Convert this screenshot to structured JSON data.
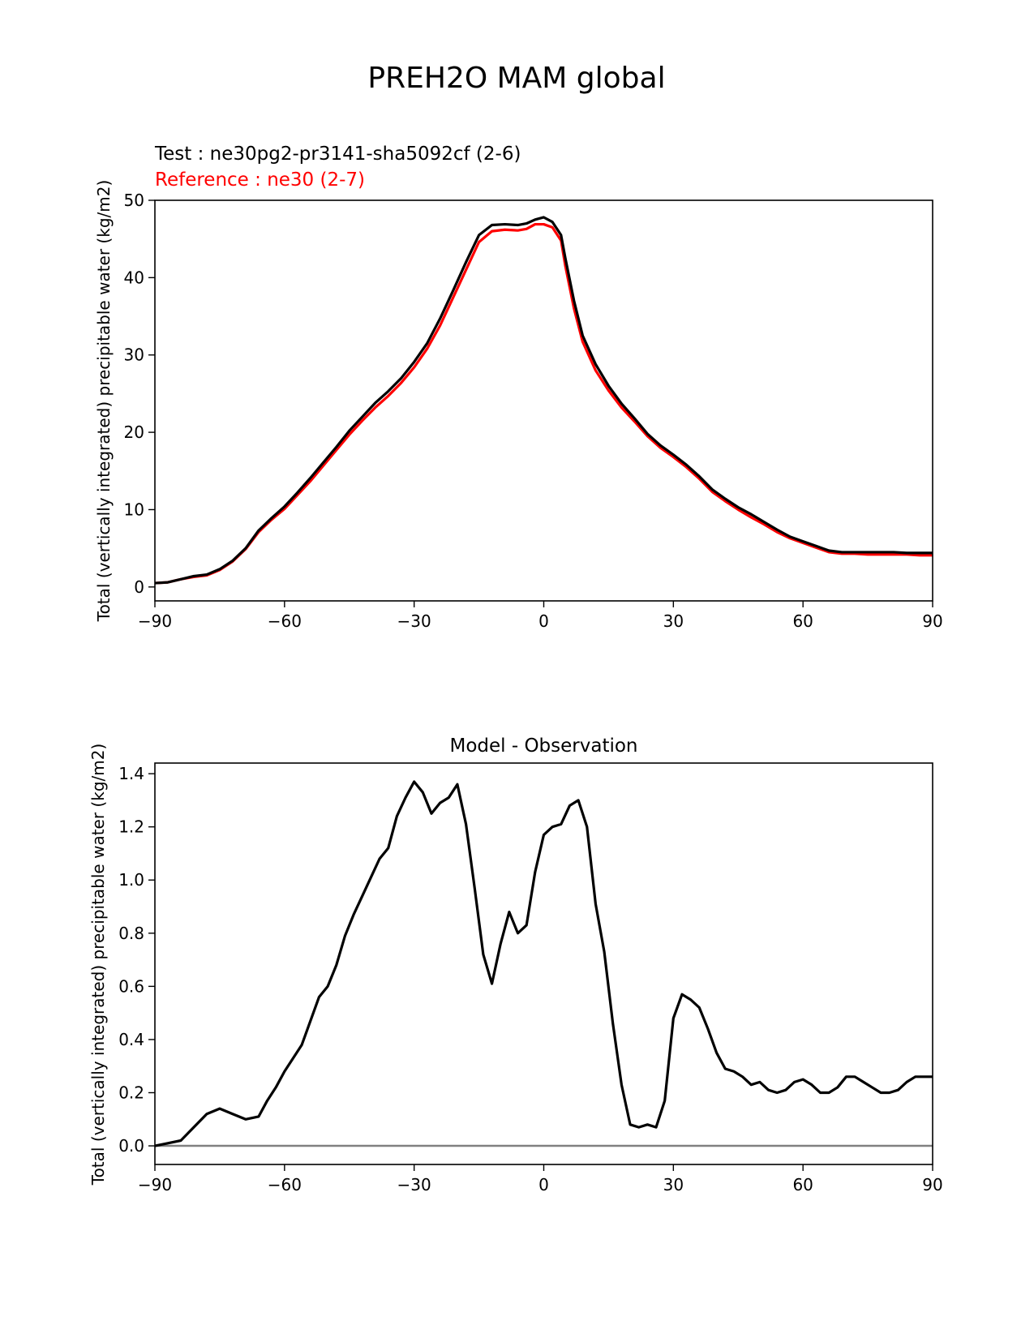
{
  "title": "PREH2O MAM global",
  "chart_data": [
    {
      "type": "line",
      "test_label": "Test : ne30pg2-pr3141-sha5092cf (2-6)",
      "reference_label": "Reference : ne30 (2-7)",
      "ylabel": "Total (vertically integrated) precipitable water (kg/m2)",
      "xlim": [
        -90,
        90
      ],
      "ylim": [
        -1.8,
        50
      ],
      "xticks": [
        -90,
        -60,
        -30,
        0,
        30,
        60,
        90
      ],
      "xtick_labels": [
        "−90",
        "−60",
        "−30",
        "0",
        "30",
        "60",
        "90"
      ],
      "yticks": [
        0,
        10,
        20,
        30,
        40,
        50
      ],
      "ytick_labels": [
        "0",
        "10",
        "20",
        "30",
        "40",
        "50"
      ],
      "series": [
        {
          "name": "Test",
          "color": "#000000",
          "x": [
            -90,
            -87,
            -84,
            -81,
            -78,
            -75,
            -72,
            -69,
            -66,
            -63,
            -60,
            -57,
            -54,
            -51,
            -48,
            -45,
            -42,
            -39,
            -36,
            -33,
            -30,
            -27,
            -24,
            -21,
            -18,
            -15,
            -12,
            -9,
            -6,
            -4,
            -2,
            0,
            2,
            4,
            5,
            7,
            9,
            12,
            15,
            18,
            21,
            24,
            27,
            30,
            33,
            36,
            39,
            42,
            45,
            48,
            51,
            54,
            57,
            60,
            63,
            66,
            69,
            72,
            75,
            78,
            81,
            84,
            87,
            90
          ],
          "values": [
            0.5,
            0.6,
            1.0,
            1.4,
            1.6,
            2.3,
            3.4,
            5.0,
            7.3,
            8.9,
            10.4,
            12.2,
            14.1,
            16.1,
            18.1,
            20.2,
            22.0,
            23.8,
            25.3,
            27.0,
            29.1,
            31.5,
            34.7,
            38.3,
            42.0,
            45.5,
            46.8,
            46.9,
            46.8,
            47.0,
            47.5,
            47.8,
            47.2,
            45.5,
            42.5,
            37.0,
            32.5,
            28.8,
            26.0,
            23.7,
            21.8,
            19.8,
            18.3,
            17.1,
            15.8,
            14.3,
            12.6,
            11.4,
            10.3,
            9.4,
            8.4,
            7.4,
            6.5,
            5.9,
            5.3,
            4.7,
            4.5,
            4.5,
            4.5,
            4.5,
            4.5,
            4.4,
            4.4,
            4.4
          ]
        },
        {
          "name": "Reference",
          "color": "#ff0000",
          "x": [
            -90,
            -87,
            -84,
            -81,
            -78,
            -75,
            -72,
            -69,
            -66,
            -63,
            -60,
            -57,
            -54,
            -51,
            -48,
            -45,
            -42,
            -39,
            -36,
            -33,
            -30,
            -27,
            -24,
            -21,
            -18,
            -15,
            -12,
            -9,
            -6,
            -4,
            -2,
            0,
            2,
            4,
            5,
            7,
            9,
            12,
            15,
            18,
            21,
            24,
            27,
            30,
            33,
            36,
            39,
            42,
            45,
            48,
            51,
            54,
            57,
            60,
            63,
            66,
            69,
            72,
            75,
            78,
            81,
            84,
            87,
            90
          ],
          "values": [
            0.5,
            0.6,
            1.0,
            1.3,
            1.5,
            2.2,
            3.3,
            4.9,
            7.1,
            8.7,
            10.1,
            11.9,
            13.7,
            15.7,
            17.7,
            19.7,
            21.5,
            23.2,
            24.7,
            26.4,
            28.4,
            30.8,
            33.8,
            37.4,
            41.0,
            44.6,
            46.0,
            46.2,
            46.1,
            46.3,
            46.9,
            46.9,
            46.5,
            44.8,
            41.5,
            36.0,
            31.7,
            28.0,
            25.4,
            23.2,
            21.4,
            19.5,
            18.0,
            16.8,
            15.5,
            14.0,
            12.3,
            11.1,
            10.0,
            9.0,
            8.1,
            7.1,
            6.3,
            5.7,
            5.1,
            4.5,
            4.3,
            4.3,
            4.2,
            4.2,
            4.2,
            4.2,
            4.1,
            4.1
          ]
        }
      ]
    },
    {
      "type": "line",
      "title": "Model - Observation",
      "ylabel": "Total (vertically integrated) precipitable water (kg/m2)",
      "xlim": [
        -90,
        90
      ],
      "ylim": [
        -0.07,
        1.44
      ],
      "xticks": [
        -90,
        -60,
        -30,
        0,
        30,
        60,
        90
      ],
      "xtick_labels": [
        "−90",
        "−60",
        "−30",
        "0",
        "30",
        "60",
        "90"
      ],
      "yticks": [
        0.0,
        0.2,
        0.4,
        0.6,
        0.8,
        1.0,
        1.2,
        1.4
      ],
      "ytick_labels": [
        "0.0",
        "0.2",
        "0.4",
        "0.6",
        "0.8",
        "1.0",
        "1.2",
        "1.4"
      ],
      "zero_line_color": "#808080",
      "series": [
        {
          "name": "Model - Observation",
          "color": "#000000",
          "x": [
            -90,
            -87,
            -84,
            -81,
            -78,
            -75,
            -72,
            -69,
            -66,
            -64,
            -62,
            -60,
            -58,
            -56,
            -54,
            -52,
            -50,
            -48,
            -46,
            -44,
            -42,
            -40,
            -38,
            -36,
            -34,
            -32,
            -30,
            -28,
            -26,
            -24,
            -22,
            -20,
            -18,
            -16,
            -14,
            -12,
            -10,
            -8,
            -6,
            -4,
            -2,
            0,
            2,
            4,
            6,
            8,
            10,
            12,
            14,
            16,
            18,
            20,
            22,
            24,
            26,
            28,
            30,
            32,
            34,
            36,
            38,
            40,
            42,
            44,
            46,
            48,
            50,
            52,
            54,
            56,
            58,
            60,
            62,
            64,
            66,
            68,
            70,
            72,
            74,
            76,
            78,
            80,
            82,
            84,
            86,
            88,
            90
          ],
          "values": [
            0.0,
            0.01,
            0.02,
            0.07,
            0.12,
            0.14,
            0.12,
            0.1,
            0.11,
            0.17,
            0.22,
            0.28,
            0.33,
            0.38,
            0.47,
            0.56,
            0.6,
            0.68,
            0.79,
            0.87,
            0.94,
            1.01,
            1.08,
            1.12,
            1.24,
            1.31,
            1.37,
            1.33,
            1.25,
            1.29,
            1.31,
            1.36,
            1.21,
            0.97,
            0.72,
            0.61,
            0.76,
            0.88,
            0.8,
            0.83,
            1.03,
            1.17,
            1.2,
            1.21,
            1.28,
            1.3,
            1.2,
            0.91,
            0.73,
            0.46,
            0.23,
            0.08,
            0.07,
            0.08,
            0.07,
            0.17,
            0.48,
            0.57,
            0.55,
            0.52,
            0.44,
            0.35,
            0.29,
            0.28,
            0.26,
            0.23,
            0.24,
            0.21,
            0.2,
            0.21,
            0.24,
            0.25,
            0.23,
            0.2,
            0.2,
            0.22,
            0.26,
            0.26,
            0.24,
            0.22,
            0.2,
            0.2,
            0.21,
            0.24,
            0.26,
            0.26,
            0.26
          ]
        }
      ]
    }
  ]
}
